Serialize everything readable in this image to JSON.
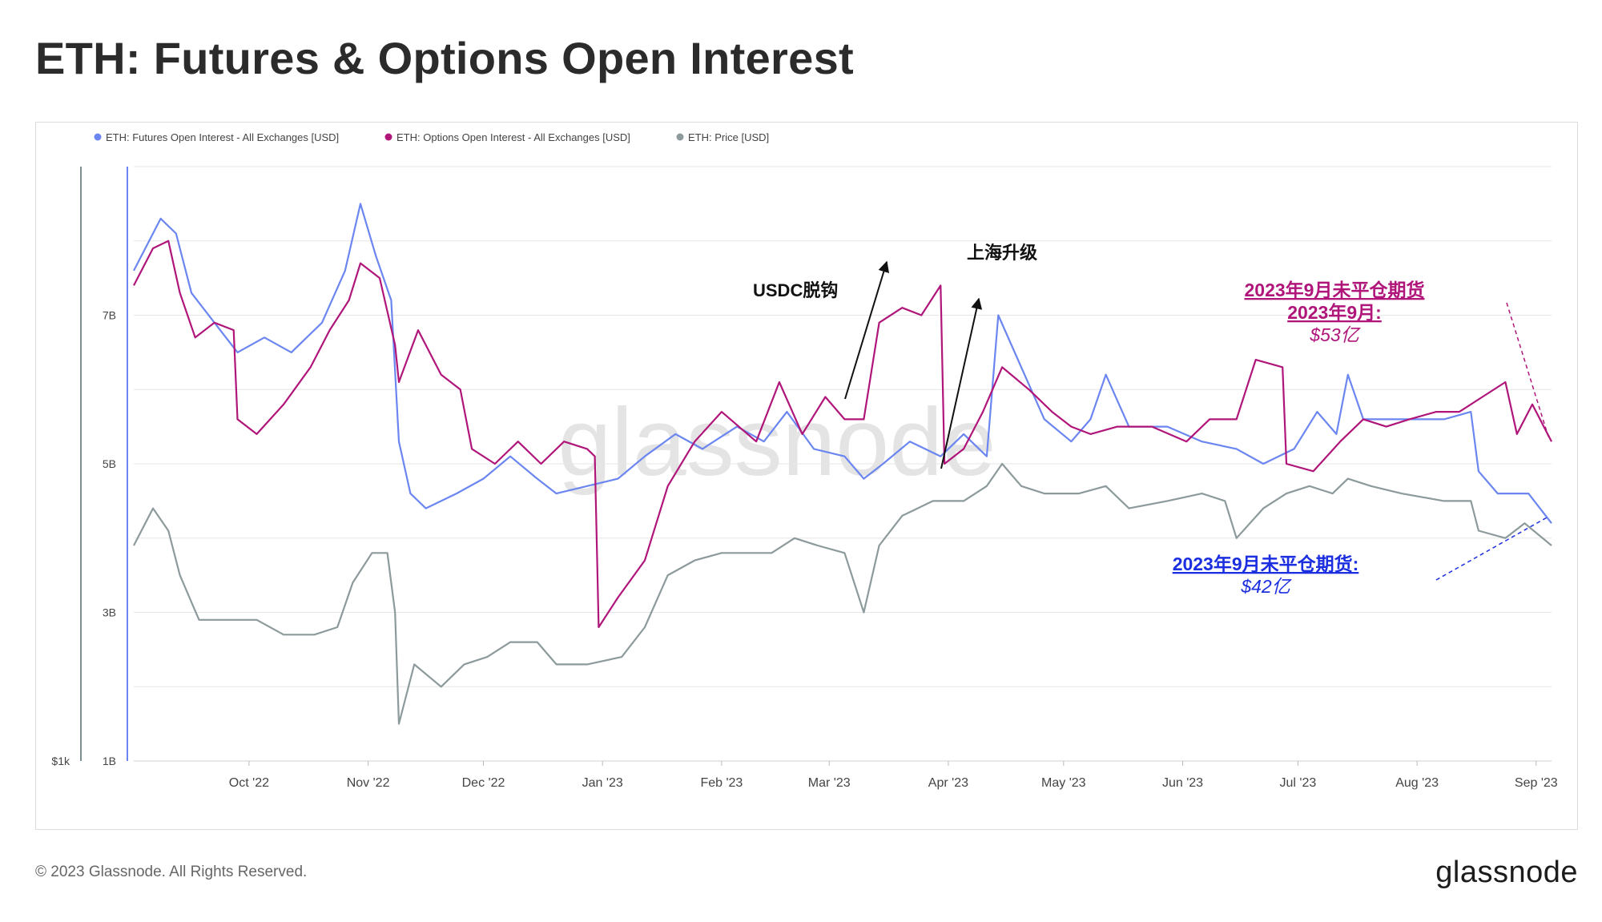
{
  "page": {
    "title": "ETH: Futures & Options Open Interest",
    "copyright": "© 2023 Glassnode. All Rights Reserved.",
    "brand": "glassnode",
    "watermark": "glassnode"
  },
  "colors": {
    "futures": "#6b86f0",
    "options": "#b0157a",
    "price": "#8c9a9c",
    "grid": "#e6e6e6",
    "axis_text": "#444444"
  },
  "chart_data": {
    "type": "line",
    "title": "ETH: Futures & Options Open Interest",
    "x_start": "2022-09-01",
    "x_end": "2023-09-05",
    "x_ticks": [
      {
        "label": "Oct '22",
        "date": "2022-10-01"
      },
      {
        "label": "Nov '22",
        "date": "2022-11-01"
      },
      {
        "label": "Dec '22",
        "date": "2022-12-01"
      },
      {
        "label": "Jan '23",
        "date": "2023-01-01"
      },
      {
        "label": "Feb '23",
        "date": "2023-02-01"
      },
      {
        "label": "Mar '23",
        "date": "2023-03-01"
      },
      {
        "label": "Apr '23",
        "date": "2023-04-01"
      },
      {
        "label": "May '23",
        "date": "2023-05-01"
      },
      {
        "label": "Jun '23",
        "date": "2023-06-01"
      },
      {
        "label": "Jul '23",
        "date": "2023-07-01"
      },
      {
        "label": "Aug '23",
        "date": "2023-08-01"
      },
      {
        "label": "Sep '23",
        "date": "2023-09-01"
      }
    ],
    "y_oi": {
      "min": 1,
      "max": 9,
      "unit": "B USD",
      "tick_labels": [
        "1B",
        "3B",
        "5B",
        "7B"
      ],
      "tick_values": [
        1,
        3,
        5,
        7
      ]
    },
    "y_price": {
      "tick_labels": [
        "$1k"
      ]
    },
    "grid": true,
    "legend_position": "top-left",
    "series": [
      {
        "name": "ETH: Futures Open Interest - All Exchanges [USD]",
        "color": "#6b86f0",
        "points": [
          [
            "2022-09-01",
            7.6
          ],
          [
            "2022-09-08",
            8.3
          ],
          [
            "2022-09-12",
            8.1
          ],
          [
            "2022-09-16",
            7.3
          ],
          [
            "2022-09-22",
            6.9
          ],
          [
            "2022-09-28",
            6.5
          ],
          [
            "2022-10-05",
            6.7
          ],
          [
            "2022-10-12",
            6.5
          ],
          [
            "2022-10-20",
            6.9
          ],
          [
            "2022-10-26",
            7.6
          ],
          [
            "2022-10-30",
            8.5
          ],
          [
            "2022-11-03",
            7.8
          ],
          [
            "2022-11-07",
            7.2
          ],
          [
            "2022-11-09",
            5.3
          ],
          [
            "2022-11-12",
            4.6
          ],
          [
            "2022-11-16",
            4.4
          ],
          [
            "2022-11-24",
            4.6
          ],
          [
            "2022-12-01",
            4.8
          ],
          [
            "2022-12-08",
            5.1
          ],
          [
            "2022-12-15",
            4.8
          ],
          [
            "2022-12-20",
            4.6
          ],
          [
            "2022-12-28",
            4.7
          ],
          [
            "2023-01-05",
            4.8
          ],
          [
            "2023-01-12",
            5.1
          ],
          [
            "2023-01-20",
            5.4
          ],
          [
            "2023-01-27",
            5.2
          ],
          [
            "2023-02-05",
            5.5
          ],
          [
            "2023-02-12",
            5.3
          ],
          [
            "2023-02-18",
            5.7
          ],
          [
            "2023-02-25",
            5.2
          ],
          [
            "2023-03-05",
            5.1
          ],
          [
            "2023-03-10",
            4.8
          ],
          [
            "2023-03-15",
            5.0
          ],
          [
            "2023-03-22",
            5.3
          ],
          [
            "2023-03-30",
            5.1
          ],
          [
            "2023-04-05",
            5.4
          ],
          [
            "2023-04-11",
            5.1
          ],
          [
            "2023-04-14",
            7.0
          ],
          [
            "2023-04-20",
            6.3
          ],
          [
            "2023-04-26",
            5.6
          ],
          [
            "2023-05-03",
            5.3
          ],
          [
            "2023-05-08",
            5.6
          ],
          [
            "2023-05-12",
            6.2
          ],
          [
            "2023-05-18",
            5.5
          ],
          [
            "2023-05-28",
            5.5
          ],
          [
            "2023-06-06",
            5.3
          ],
          [
            "2023-06-15",
            5.2
          ],
          [
            "2023-06-22",
            5.0
          ],
          [
            "2023-06-30",
            5.2
          ],
          [
            "2023-07-06",
            5.7
          ],
          [
            "2023-07-11",
            5.4
          ],
          [
            "2023-07-14",
            6.2
          ],
          [
            "2023-07-18",
            5.6
          ],
          [
            "2023-07-28",
            5.6
          ],
          [
            "2023-08-08",
            5.6
          ],
          [
            "2023-08-15",
            5.7
          ],
          [
            "2023-08-17",
            4.9
          ],
          [
            "2023-08-22",
            4.6
          ],
          [
            "2023-08-30",
            4.6
          ],
          [
            "2023-09-05",
            4.2
          ]
        ]
      },
      {
        "name": "ETH: Options Open Interest - All Exchanges [USD]",
        "color": "#b0157a",
        "points": [
          [
            "2022-09-01",
            7.4
          ],
          [
            "2022-09-06",
            7.9
          ],
          [
            "2022-09-10",
            8.0
          ],
          [
            "2022-09-13",
            7.3
          ],
          [
            "2022-09-17",
            6.7
          ],
          [
            "2022-09-22",
            6.9
          ],
          [
            "2022-09-27",
            6.8
          ],
          [
            "2022-09-28",
            5.6
          ],
          [
            "2022-10-03",
            5.4
          ],
          [
            "2022-10-10",
            5.8
          ],
          [
            "2022-10-17",
            6.3
          ],
          [
            "2022-10-22",
            6.8
          ],
          [
            "2022-10-27",
            7.2
          ],
          [
            "2022-10-30",
            7.7
          ],
          [
            "2022-11-04",
            7.5
          ],
          [
            "2022-11-08",
            6.6
          ],
          [
            "2022-11-09",
            6.1
          ],
          [
            "2022-11-14",
            6.8
          ],
          [
            "2022-11-20",
            6.2
          ],
          [
            "2022-11-25",
            6.0
          ],
          [
            "2022-11-28",
            5.2
          ],
          [
            "2022-12-04",
            5.0
          ],
          [
            "2022-12-10",
            5.3
          ],
          [
            "2022-12-16",
            5.0
          ],
          [
            "2022-12-22",
            5.3
          ],
          [
            "2022-12-28",
            5.2
          ],
          [
            "2022-12-30",
            5.1
          ],
          [
            "2022-12-31",
            2.8
          ],
          [
            "2023-01-05",
            3.2
          ],
          [
            "2023-01-12",
            3.7
          ],
          [
            "2023-01-18",
            4.7
          ],
          [
            "2023-01-25",
            5.3
          ],
          [
            "2023-02-01",
            5.7
          ],
          [
            "2023-02-10",
            5.3
          ],
          [
            "2023-02-16",
            6.1
          ],
          [
            "2023-02-22",
            5.4
          ],
          [
            "2023-02-28",
            5.9
          ],
          [
            "2023-03-05",
            5.6
          ],
          [
            "2023-03-10",
            5.6
          ],
          [
            "2023-03-14",
            6.9
          ],
          [
            "2023-03-20",
            7.1
          ],
          [
            "2023-03-25",
            7.0
          ],
          [
            "2023-03-30",
            7.4
          ],
          [
            "2023-03-31",
            5.0
          ],
          [
            "2023-04-05",
            5.2
          ],
          [
            "2023-04-10",
            5.7
          ],
          [
            "2023-04-15",
            6.3
          ],
          [
            "2023-04-22",
            6.0
          ],
          [
            "2023-04-28",
            5.7
          ],
          [
            "2023-05-03",
            5.5
          ],
          [
            "2023-05-08",
            5.4
          ],
          [
            "2023-05-15",
            5.5
          ],
          [
            "2023-05-24",
            5.5
          ],
          [
            "2023-06-02",
            5.3
          ],
          [
            "2023-06-08",
            5.6
          ],
          [
            "2023-06-15",
            5.6
          ],
          [
            "2023-06-20",
            6.4
          ],
          [
            "2023-06-27",
            6.3
          ],
          [
            "2023-06-28",
            5.0
          ],
          [
            "2023-07-05",
            4.9
          ],
          [
            "2023-07-12",
            5.3
          ],
          [
            "2023-07-18",
            5.6
          ],
          [
            "2023-07-24",
            5.5
          ],
          [
            "2023-07-30",
            5.6
          ],
          [
            "2023-08-06",
            5.7
          ],
          [
            "2023-08-12",
            5.7
          ],
          [
            "2023-08-18",
            5.9
          ],
          [
            "2023-08-24",
            6.1
          ],
          [
            "2023-08-27",
            5.4
          ],
          [
            "2023-08-31",
            5.8
          ],
          [
            "2023-09-05",
            5.3
          ]
        ]
      },
      {
        "name": "ETH: Price [USD]",
        "color": "#8c9a9c",
        "points": [
          [
            "2022-09-01",
            3.9
          ],
          [
            "2022-09-06",
            4.4
          ],
          [
            "2022-09-10",
            4.1
          ],
          [
            "2022-09-13",
            3.5
          ],
          [
            "2022-09-18",
            2.9
          ],
          [
            "2022-09-25",
            2.9
          ],
          [
            "2022-10-03",
            2.9
          ],
          [
            "2022-10-10",
            2.7
          ],
          [
            "2022-10-18",
            2.7
          ],
          [
            "2022-10-24",
            2.8
          ],
          [
            "2022-10-28",
            3.4
          ],
          [
            "2022-11-02",
            3.8
          ],
          [
            "2022-11-06",
            3.8
          ],
          [
            "2022-11-08",
            3.0
          ],
          [
            "2022-11-09",
            1.5
          ],
          [
            "2022-11-13",
            2.3
          ],
          [
            "2022-11-20",
            2.0
          ],
          [
            "2022-11-26",
            2.3
          ],
          [
            "2022-12-02",
            2.4
          ],
          [
            "2022-12-08",
            2.6
          ],
          [
            "2022-12-15",
            2.6
          ],
          [
            "2022-12-20",
            2.3
          ],
          [
            "2022-12-28",
            2.3
          ],
          [
            "2023-01-06",
            2.4
          ],
          [
            "2023-01-12",
            2.8
          ],
          [
            "2023-01-18",
            3.5
          ],
          [
            "2023-01-25",
            3.7
          ],
          [
            "2023-02-01",
            3.8
          ],
          [
            "2023-02-08",
            3.8
          ],
          [
            "2023-02-14",
            3.8
          ],
          [
            "2023-02-20",
            4.0
          ],
          [
            "2023-02-26",
            3.9
          ],
          [
            "2023-03-05",
            3.8
          ],
          [
            "2023-03-10",
            3.0
          ],
          [
            "2023-03-14",
            3.9
          ],
          [
            "2023-03-20",
            4.3
          ],
          [
            "2023-03-28",
            4.5
          ],
          [
            "2023-04-05",
            4.5
          ],
          [
            "2023-04-11",
            4.7
          ],
          [
            "2023-04-15",
            5.0
          ],
          [
            "2023-04-20",
            4.7
          ],
          [
            "2023-04-26",
            4.6
          ],
          [
            "2023-05-05",
            4.6
          ],
          [
            "2023-05-12",
            4.7
          ],
          [
            "2023-05-18",
            4.4
          ],
          [
            "2023-05-28",
            4.5
          ],
          [
            "2023-06-06",
            4.6
          ],
          [
            "2023-06-12",
            4.5
          ],
          [
            "2023-06-15",
            4.0
          ],
          [
            "2023-06-22",
            4.4
          ],
          [
            "2023-06-28",
            4.6
          ],
          [
            "2023-07-04",
            4.7
          ],
          [
            "2023-07-10",
            4.6
          ],
          [
            "2023-07-14",
            4.8
          ],
          [
            "2023-07-20",
            4.7
          ],
          [
            "2023-07-28",
            4.6
          ],
          [
            "2023-08-08",
            4.5
          ],
          [
            "2023-08-15",
            4.5
          ],
          [
            "2023-08-17",
            4.1
          ],
          [
            "2023-08-24",
            4.0
          ],
          [
            "2023-08-29",
            4.2
          ],
          [
            "2023-09-05",
            3.9
          ]
        ]
      }
    ],
    "annotations": {
      "usdc": "USDC脱钩",
      "shanghai": "上海升级",
      "options_l1": "2023年9月未平仓期货",
      "options_l2": "2023年9月:",
      "options_val": "$53亿",
      "futures_l1": "2023年9月未平仓期货:",
      "futures_val": "$42亿"
    }
  }
}
